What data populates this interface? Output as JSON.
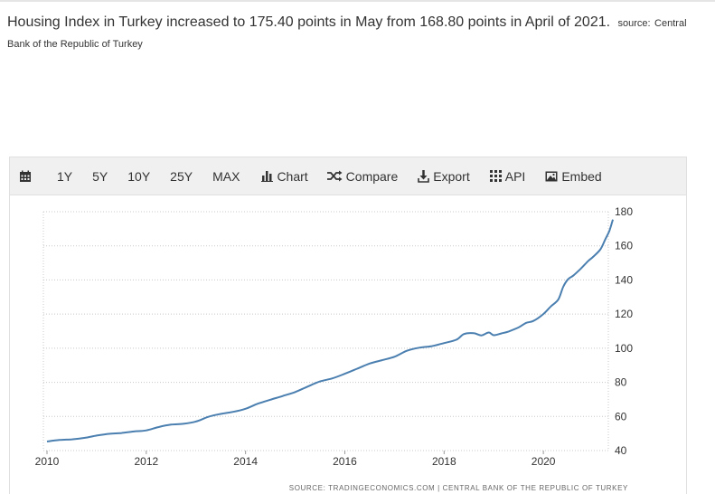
{
  "headline": {
    "text": "Housing Index in Turkey increased to 175.40 points in May from 168.80 points in April of 2021.",
    "source_label": "source:",
    "source_name": "Central Bank of the Republic of Turkey"
  },
  "toolbar": {
    "ranges": [
      "1Y",
      "5Y",
      "10Y",
      "25Y",
      "MAX"
    ],
    "chart_label": "Chart",
    "compare_label": "Compare",
    "export_label": "Export",
    "api_label": "API",
    "embed_label": "Embed"
  },
  "colors": {
    "line": "#4a7fb0",
    "grid": "#c8c8c8",
    "toolbar_bg": "#f0f0f0"
  },
  "icons": [
    "calendar-icon",
    "bar-chart-icon",
    "shuffle-icon",
    "download-icon",
    "grid-icon",
    "image-icon"
  ],
  "chart_data": {
    "type": "line",
    "title": "",
    "xlabel": "",
    "ylabel": "",
    "x_ticks": [
      "2010",
      "2012",
      "2014",
      "2016",
      "2018",
      "2020"
    ],
    "y_ticks": [
      40,
      60,
      80,
      100,
      120,
      140,
      160,
      180
    ],
    "ylim": [
      40,
      180
    ],
    "xlim": [
      2010.0,
      2021.4
    ],
    "y_axis_side": "right",
    "grid": "horizontal-dotted",
    "source_note": "SOURCE: TRADINGECONOMICS.COM | CENTRAL BANK OF THE REPUBLIC OF TURKEY",
    "series": [
      {
        "x": [
          2010.0,
          2010.25,
          2010.5,
          2010.75,
          2011.0,
          2011.25,
          2011.5,
          2011.75,
          2012.0,
          2012.25,
          2012.5,
          2012.75,
          2013.0,
          2013.25,
          2013.5,
          2013.75,
          2014.0,
          2014.25,
          2014.5,
          2014.75,
          2015.0,
          2015.25,
          2015.5,
          2015.75,
          2016.0,
          2016.25,
          2016.5,
          2016.75,
          2017.0,
          2017.25,
          2017.5,
          2017.75,
          2018.0,
          2018.25,
          2018.4,
          2018.6,
          2018.75,
          2018.9,
          2019.0,
          2019.15,
          2019.3,
          2019.5,
          2019.65,
          2019.8,
          2020.0,
          2020.15,
          2020.3,
          2020.4,
          2020.5,
          2020.6,
          2020.75,
          2020.9,
          2021.0,
          2021.15,
          2021.25,
          2021.33,
          2021.4
        ],
        "values": [
          45.3,
          46.2,
          46.6,
          47.4,
          48.8,
          49.8,
          50.3,
          51.2,
          51.8,
          53.8,
          55.2,
          55.7,
          57.0,
          59.8,
          61.5,
          62.7,
          64.5,
          67.5,
          69.8,
          72.0,
          74.3,
          77.5,
          80.5,
          82.3,
          85.0,
          88.0,
          91.0,
          93.0,
          95.0,
          98.5,
          100.3,
          101.2,
          103.0,
          105.0,
          108.3,
          108.8,
          107.5,
          109.2,
          107.6,
          108.6,
          109.8,
          112.2,
          114.8,
          116.0,
          120.0,
          124.5,
          128.5,
          136.0,
          140.5,
          142.5,
          146.5,
          151.0,
          153.5,
          158.0,
          164.0,
          168.8,
          175.4
        ]
      }
    ]
  }
}
